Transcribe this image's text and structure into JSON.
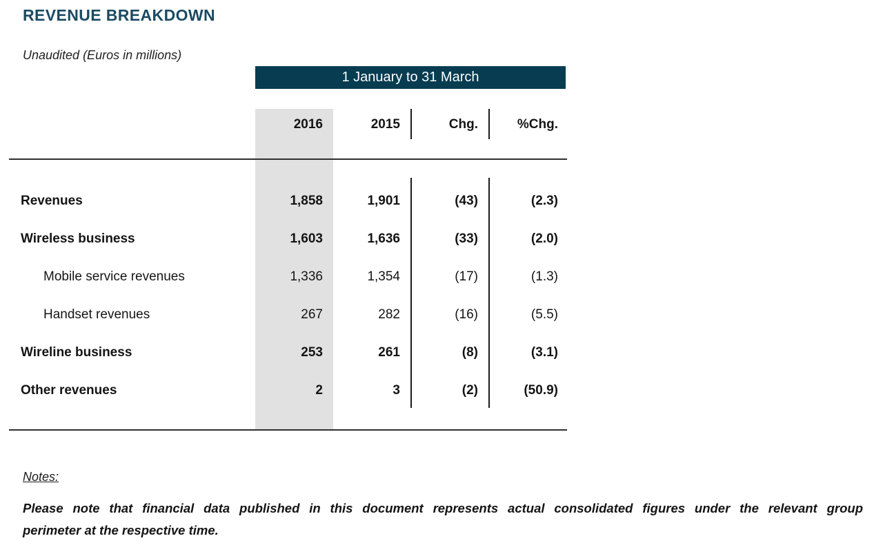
{
  "page": {
    "title": "REVENUE BREAKDOWN",
    "subtitle": "Unaudited (Euros in millions)"
  },
  "table": {
    "period_header": "1 January to 31 March",
    "columns": [
      "2016",
      "2015",
      "Chg.",
      "%Chg."
    ],
    "rows": [
      {
        "label": "Revenues",
        "v2016": "1,858",
        "v2015": "1,901",
        "chg": "(43)",
        "pct_chg": "(2.3)",
        "emphasis": "bold"
      },
      {
        "label": "Wireless business",
        "v2016": "1,603",
        "v2015": "1,636",
        "chg": "(33)",
        "pct_chg": "(2.0)",
        "emphasis": "bold"
      },
      {
        "label": "Mobile service revenues",
        "v2016": "1,336",
        "v2015": "1,354",
        "chg": "(17)",
        "pct_chg": "(1.3)",
        "emphasis": "regular-indented"
      },
      {
        "label": "Handset revenues",
        "v2016": "267",
        "v2015": "282",
        "chg": "(16)",
        "pct_chg": "(5.5)",
        "emphasis": "regular-indented"
      },
      {
        "label": "Wireline business",
        "v2016": "253",
        "v2015": "261",
        "chg": "(8)",
        "pct_chg": "(3.1)",
        "emphasis": "bold"
      },
      {
        "label": "Other revenues",
        "v2016": "2",
        "v2015": "3",
        "chg": "(2)",
        "pct_chg": "(50.9)",
        "emphasis": "bold"
      }
    ]
  },
  "notes": {
    "heading": "Notes:",
    "body_line1": "Please note that financial data published in this document represents actual consolidated figures under the relevant group",
    "body_line2": "perimeter at the respective time."
  },
  "colors": {
    "accent_teal_band": "#073c51",
    "title_teal": "#1b4a63",
    "highlight_column_gray": "#e1e1e1"
  }
}
